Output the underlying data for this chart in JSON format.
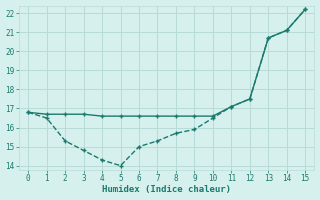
{
  "xlabel": "Humidex (Indice chaleur)",
  "line1_x": [
    0,
    1,
    2,
    3,
    4,
    5,
    6,
    7,
    8,
    9,
    10,
    11,
    12,
    13,
    14,
    15
  ],
  "line1_y": [
    16.8,
    16.5,
    15.3,
    14.8,
    14.3,
    14.0,
    15.0,
    15.3,
    15.7,
    15.9,
    16.5,
    17.1,
    17.5,
    20.7,
    21.1,
    22.2
  ],
  "line2_x": [
    0,
    1,
    2,
    3,
    4,
    5,
    6,
    7,
    8,
    9,
    10,
    11,
    12,
    13,
    14,
    15
  ],
  "line2_y": [
    16.8,
    16.7,
    16.7,
    16.7,
    16.6,
    16.6,
    16.6,
    16.6,
    16.6,
    16.6,
    16.6,
    17.1,
    17.5,
    20.7,
    21.1,
    22.2
  ],
  "line_color": "#1a7a6e",
  "bg_color": "#d6f0ee",
  "grid_color": "#b8dbd8",
  "xlim": [
    -0.5,
    15.5
  ],
  "ylim": [
    13.8,
    22.4
  ],
  "yticks": [
    14,
    15,
    16,
    17,
    18,
    19,
    20,
    21,
    22
  ],
  "xticks": [
    0,
    1,
    2,
    3,
    4,
    5,
    6,
    7,
    8,
    9,
    10,
    11,
    12,
    13,
    14,
    15
  ],
  "markersize": 2.5,
  "linewidth": 1.0
}
